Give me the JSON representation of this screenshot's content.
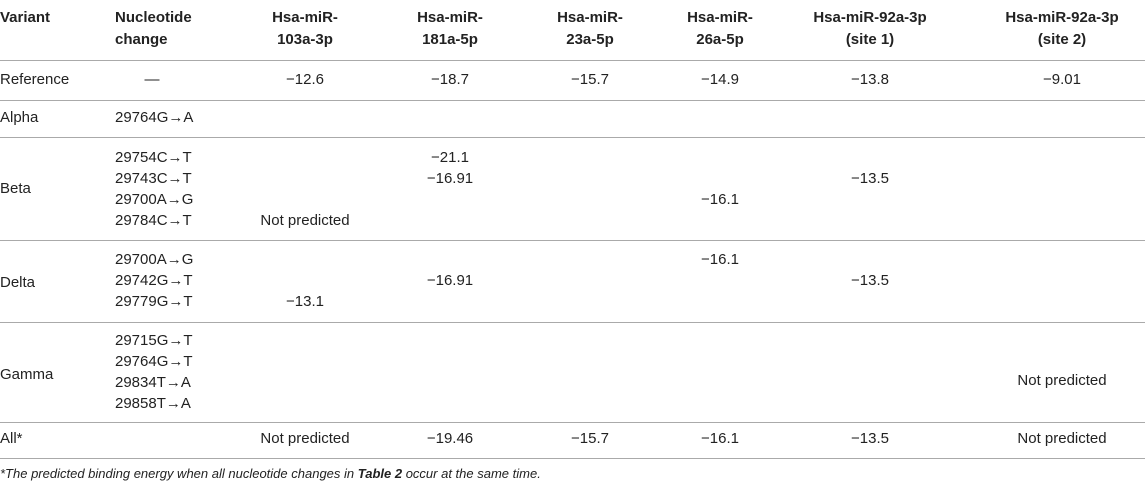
{
  "table": {
    "header": [
      "Variant",
      "Nucleotide change",
      "Hsa-miR-103a-3p",
      "Hsa-miR-181a-5p",
      "Hsa-miR-23a-5p",
      "Hsa-miR-26a-5p",
      "Hsa-miR-92a-3p (site 1)",
      "Hsa-miR-92a-3p (site 2)"
    ],
    "header_lines": [
      [
        "Variant"
      ],
      [
        "Nucleotide",
        "change"
      ],
      [
        "Hsa-miR-",
        "103a-3p"
      ],
      [
        "Hsa-miR-",
        "181a-5p"
      ],
      [
        "Hsa-miR-",
        "23a-5p"
      ],
      [
        "Hsa-miR-",
        "26a-5p"
      ],
      [
        "Hsa-miR-92a-3p",
        "(site 1)"
      ],
      [
        "Hsa-miR-92a-3p",
        "(site 2)"
      ]
    ],
    "rows": [
      {
        "variant": "Reference",
        "changes": [
          "—"
        ],
        "values": [
          [
            "−12.6"
          ],
          [
            "−18.7"
          ],
          [
            "−15.7"
          ],
          [
            "−14.9"
          ],
          [
            "−13.8"
          ],
          [
            "−9.01"
          ]
        ]
      },
      {
        "variant": "Alpha",
        "changes": [
          "29764G→A"
        ],
        "values": [
          null,
          null,
          null,
          null,
          null,
          null
        ]
      },
      {
        "variant": "Beta",
        "changes": [
          "29754C→T",
          "29743C→T",
          "29700A→G",
          "29784C→T"
        ],
        "values": [
          [
            "Not predicted"
          ],
          [
            "−21.1",
            "−16.91"
          ],
          null,
          [
            "−16.1"
          ],
          [
            "−13.5"
          ],
          null
        ]
      },
      {
        "variant": "Delta",
        "changes": [
          "29700A→G",
          "29742G→T",
          "29779G→T"
        ],
        "values": [
          [
            "−13.1"
          ],
          [
            "−16.91"
          ],
          null,
          [
            "−16.1"
          ],
          [
            "−13.5"
          ],
          null
        ]
      },
      {
        "variant": "Gamma",
        "changes": [
          "29715G→T",
          "29764G→T",
          "29834T→A",
          "29858T→A"
        ],
        "values": [
          null,
          null,
          null,
          null,
          null,
          [
            "Not predicted"
          ]
        ]
      },
      {
        "variant": "All*",
        "changes": [],
        "values": [
          [
            "Not predicted"
          ],
          [
            "−19.46"
          ],
          [
            "−15.7"
          ],
          [
            "−16.1"
          ],
          [
            "−13.5"
          ],
          [
            "Not predicted"
          ]
        ]
      }
    ],
    "footnote": {
      "before": "*The predicted binding energy when all nucleotide changes in ",
      "bold": "Table 2",
      "after": " occur at the same time."
    }
  }
}
